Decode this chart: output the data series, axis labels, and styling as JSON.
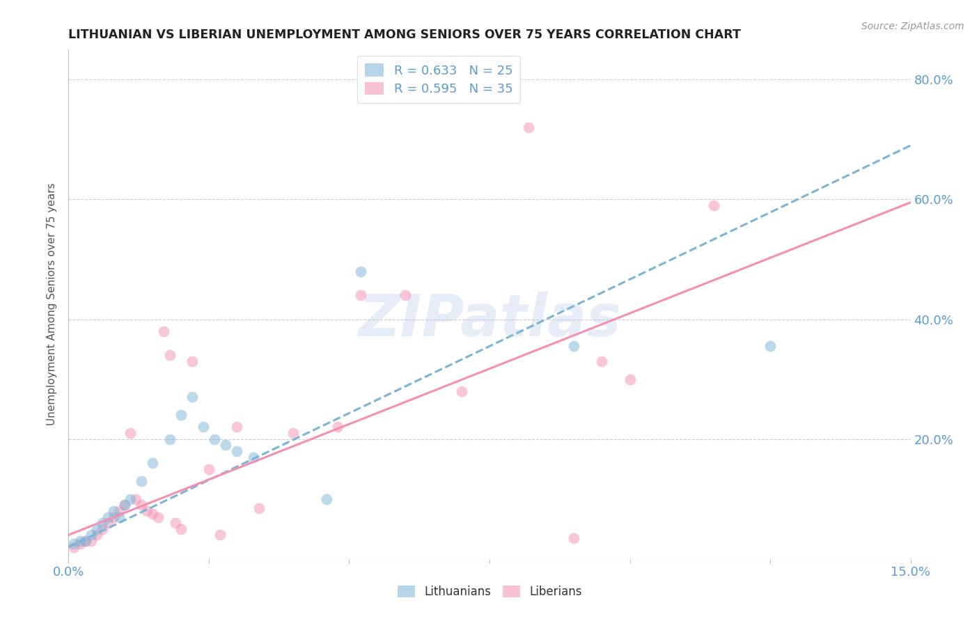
{
  "title": "LITHUANIAN VS LIBERIAN UNEMPLOYMENT AMONG SENIORS OVER 75 YEARS CORRELATION CHART",
  "source": "Source: ZipAtlas.com",
  "ylabel": "Unemployment Among Seniors over 75 years",
  "xlim": [
    0.0,
    0.15
  ],
  "ylim": [
    0.0,
    0.85
  ],
  "xtick_positions": [
    0.0,
    0.025,
    0.05,
    0.075,
    0.1,
    0.125,
    0.15
  ],
  "xtick_labels": [
    "0.0%",
    "",
    "",
    "",
    "",
    "",
    "15.0%"
  ],
  "ytick_positions": [
    0.0,
    0.2,
    0.4,
    0.6,
    0.8
  ],
  "ytick_labels": [
    "",
    "20.0%",
    "40.0%",
    "60.0%",
    "80.0%"
  ],
  "watermark": "ZIPatlas",
  "legend_r_blue": "R = 0.633",
  "legend_n_blue": "N = 25",
  "legend_r_pink": "R = 0.595",
  "legend_n_pink": "N = 35",
  "blue_color": "#7ab4d8",
  "pink_color": "#f48fb1",
  "axis_label_color": "#5b9bd5",
  "grid_color": "#cccccc",
  "blue_scatter": [
    [
      0.001,
      0.025
    ],
    [
      0.002,
      0.03
    ],
    [
      0.003,
      0.03
    ],
    [
      0.004,
      0.04
    ],
    [
      0.005,
      0.05
    ],
    [
      0.006,
      0.06
    ],
    [
      0.007,
      0.07
    ],
    [
      0.008,
      0.08
    ],
    [
      0.009,
      0.07
    ],
    [
      0.01,
      0.09
    ],
    [
      0.011,
      0.1
    ],
    [
      0.013,
      0.13
    ],
    [
      0.015,
      0.16
    ],
    [
      0.018,
      0.2
    ],
    [
      0.02,
      0.24
    ],
    [
      0.022,
      0.27
    ],
    [
      0.024,
      0.22
    ],
    [
      0.026,
      0.2
    ],
    [
      0.028,
      0.19
    ],
    [
      0.03,
      0.18
    ],
    [
      0.033,
      0.17
    ],
    [
      0.046,
      0.1
    ],
    [
      0.052,
      0.48
    ],
    [
      0.09,
      0.355
    ],
    [
      0.125,
      0.355
    ]
  ],
  "pink_scatter": [
    [
      0.001,
      0.02
    ],
    [
      0.002,
      0.025
    ],
    [
      0.003,
      0.03
    ],
    [
      0.004,
      0.03
    ],
    [
      0.005,
      0.04
    ],
    [
      0.006,
      0.05
    ],
    [
      0.007,
      0.06
    ],
    [
      0.008,
      0.07
    ],
    [
      0.009,
      0.08
    ],
    [
      0.01,
      0.09
    ],
    [
      0.011,
      0.21
    ],
    [
      0.012,
      0.1
    ],
    [
      0.013,
      0.09
    ],
    [
      0.014,
      0.08
    ],
    [
      0.015,
      0.075
    ],
    [
      0.016,
      0.07
    ],
    [
      0.017,
      0.38
    ],
    [
      0.018,
      0.34
    ],
    [
      0.019,
      0.06
    ],
    [
      0.02,
      0.05
    ],
    [
      0.022,
      0.33
    ],
    [
      0.025,
      0.15
    ],
    [
      0.027,
      0.04
    ],
    [
      0.03,
      0.22
    ],
    [
      0.034,
      0.085
    ],
    [
      0.04,
      0.21
    ],
    [
      0.048,
      0.22
    ],
    [
      0.052,
      0.44
    ],
    [
      0.06,
      0.44
    ],
    [
      0.07,
      0.28
    ],
    [
      0.082,
      0.72
    ],
    [
      0.09,
      0.035
    ],
    [
      0.095,
      0.33
    ],
    [
      0.1,
      0.3
    ],
    [
      0.115,
      0.59
    ]
  ],
  "blue_line_x": [
    0.0,
    0.15
  ],
  "blue_line_y": [
    0.02,
    0.69
  ],
  "pink_line_x": [
    0.0,
    0.15
  ],
  "pink_line_y": [
    0.04,
    0.595
  ]
}
